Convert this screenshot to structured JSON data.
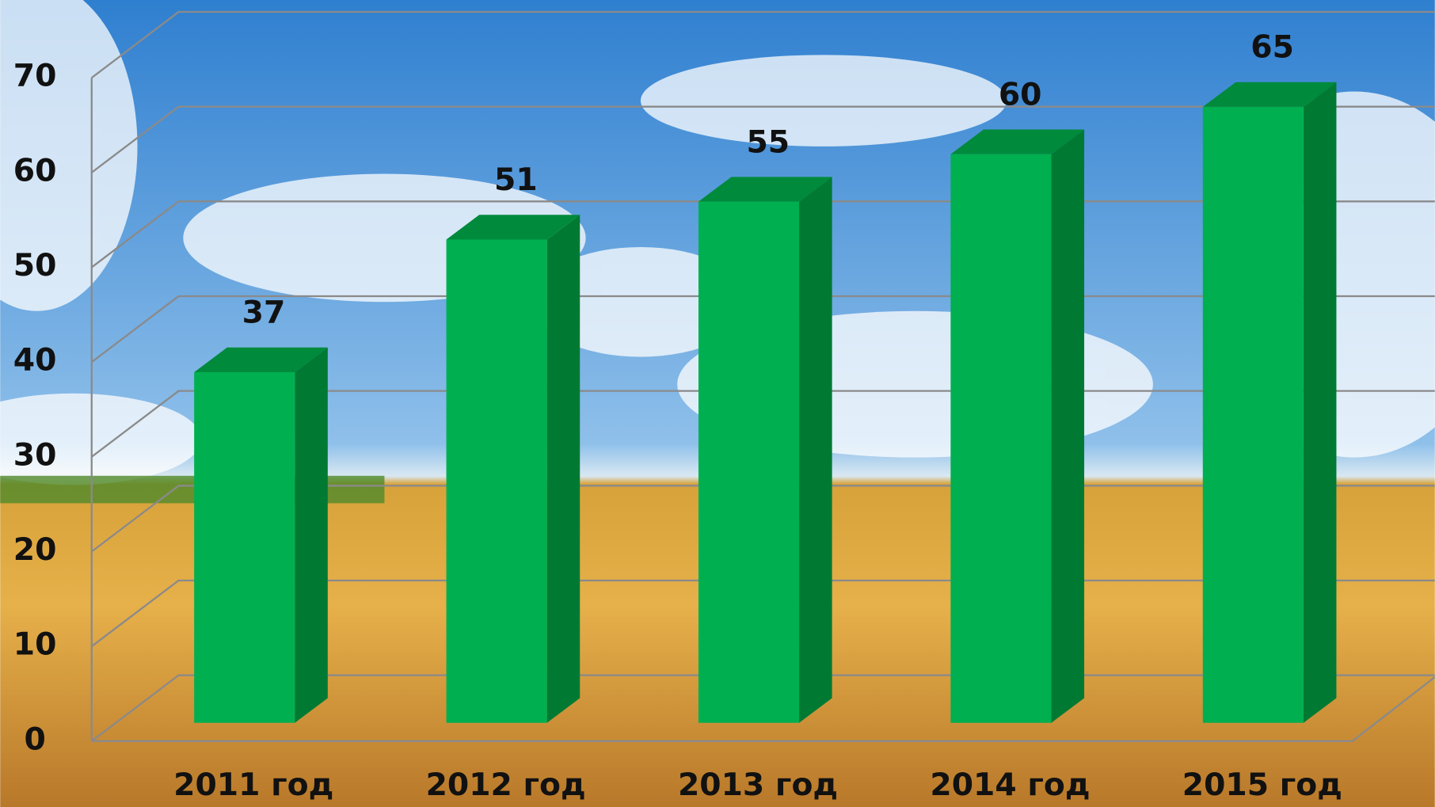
{
  "chart_data": {
    "type": "bar3d",
    "categories": [
      "2011 год",
      "2012 год",
      "2013 год",
      "2014 год",
      "2015 год"
    ],
    "values": [
      37,
      51,
      55,
      60,
      65
    ],
    "color": "#00b050",
    "side_color": "#007a33",
    "top_color": "#008a3c",
    "ylim": [
      0,
      70
    ],
    "yticks": [
      0,
      10,
      20,
      30,
      40,
      50,
      60,
      70
    ],
    "grid": true,
    "data_labels": true
  }
}
